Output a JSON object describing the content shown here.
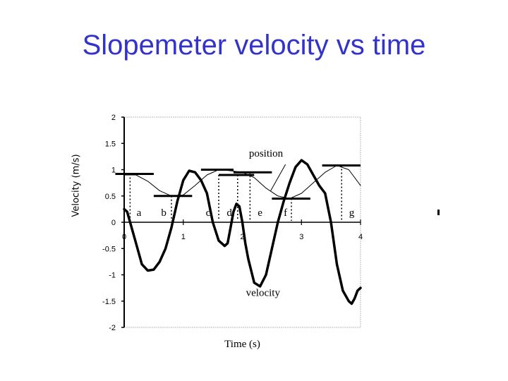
{
  "title": "Slopemeter velocity vs time",
  "chart_data": {
    "type": "line",
    "title": "Slopemeter velocity vs time",
    "xlabel": "Time (s)",
    "ylabel": "Velocity (m/s)",
    "xlim": [
      0,
      4
    ],
    "ylim": [
      -2,
      2
    ],
    "x_ticks": [
      "0",
      "1",
      "2",
      "3",
      "4"
    ],
    "y_ticks": [
      "2",
      "1.5",
      "1",
      "0.5",
      "0",
      "-0.5",
      "-1",
      "-1.5",
      "-2"
    ],
    "grid": false,
    "series": [
      {
        "name": "velocity",
        "style": "thick",
        "x": [
          0,
          0.05,
          0.1,
          0.2,
          0.3,
          0.4,
          0.5,
          0.6,
          0.7,
          0.8,
          0.9,
          1.0,
          1.1,
          1.2,
          1.3,
          1.4,
          1.5,
          1.6,
          1.7,
          1.75,
          1.8,
          1.85,
          1.9,
          1.95,
          2.0,
          2.05,
          2.1,
          2.2,
          2.3,
          2.4,
          2.5,
          2.6,
          2.7,
          2.8,
          2.9,
          3.0,
          3.1,
          3.2,
          3.3,
          3.4,
          3.5,
          3.6,
          3.7,
          3.8,
          3.85,
          3.9,
          3.95,
          4.0
        ],
        "values": [
          0.25,
          0.2,
          0.0,
          -0.4,
          -0.8,
          -0.92,
          -0.9,
          -0.75,
          -0.5,
          -0.1,
          0.4,
          0.8,
          0.98,
          0.95,
          0.8,
          0.55,
          0.0,
          -0.35,
          -0.45,
          -0.4,
          -0.1,
          0.2,
          0.35,
          0.3,
          0.0,
          -0.4,
          -0.7,
          -1.15,
          -1.22,
          -1.0,
          -0.5,
          0.0,
          0.4,
          0.75,
          1.05,
          1.18,
          1.1,
          0.9,
          0.7,
          0.55,
          0.0,
          -0.8,
          -1.3,
          -1.5,
          -1.55,
          -1.45,
          -1.3,
          -1.25
        ]
      },
      {
        "name": "position",
        "style": "thin",
        "x": [
          0,
          0.2,
          0.4,
          0.6,
          0.8,
          1.0,
          1.2,
          1.4,
          1.6,
          1.8,
          2.0,
          2.2,
          2.4,
          2.6,
          2.8,
          3.0,
          3.2,
          3.4,
          3.6,
          3.8,
          4.0
        ],
        "values": [
          0.9,
          0.9,
          0.78,
          0.6,
          0.5,
          0.52,
          0.7,
          0.9,
          1.0,
          0.98,
          0.95,
          0.85,
          0.65,
          0.5,
          0.45,
          0.55,
          0.75,
          0.95,
          1.08,
          1.0,
          0.7
        ]
      }
    ],
    "annotations": [
      {
        "text": "position",
        "x": 2.4,
        "y": 1.25
      },
      {
        "text": "velocity",
        "x": 2.35,
        "y": -1.4
      },
      {
        "text": "a",
        "x": 0.25,
        "y": 0.12
      },
      {
        "text": "b",
        "x": 0.67,
        "y": 0.12
      },
      {
        "text": "c",
        "x": 1.42,
        "y": 0.12
      },
      {
        "text": "d",
        "x": 1.78,
        "y": 0.12
      },
      {
        "text": "e",
        "x": 2.3,
        "y": 0.12
      },
      {
        "text": "f",
        "x": 2.73,
        "y": 0.12
      },
      {
        "text": "g",
        "x": 3.85,
        "y": 0.12
      }
    ],
    "horizontal_bars": [
      {
        "x1": -0.15,
        "x2": 0.5,
        "y": 0.92
      },
      {
        "x1": 0.5,
        "x2": 1.15,
        "y": 0.5
      },
      {
        "x1": 1.3,
        "x2": 1.85,
        "y": 1.0
      },
      {
        "x1": 1.6,
        "x2": 2.2,
        "y": 0.9
      },
      {
        "x1": 1.85,
        "x2": 2.5,
        "y": 0.95
      },
      {
        "x1": 2.5,
        "x2": 3.15,
        "y": 0.45
      },
      {
        "x1": 3.35,
        "x2": 4.0,
        "y": 1.08
      }
    ],
    "dotted_lines": [
      {
        "x": 0.1,
        "y": 0.92
      },
      {
        "x": 0.8,
        "y": 0.5
      },
      {
        "x": 1.6,
        "y": 0.9
      },
      {
        "x": 1.92,
        "y": 0.9
      },
      {
        "x": 2.13,
        "y": 0.95
      },
      {
        "x": 2.83,
        "y": 0.45
      },
      {
        "x": 3.68,
        "y": 1.08
      }
    ]
  }
}
